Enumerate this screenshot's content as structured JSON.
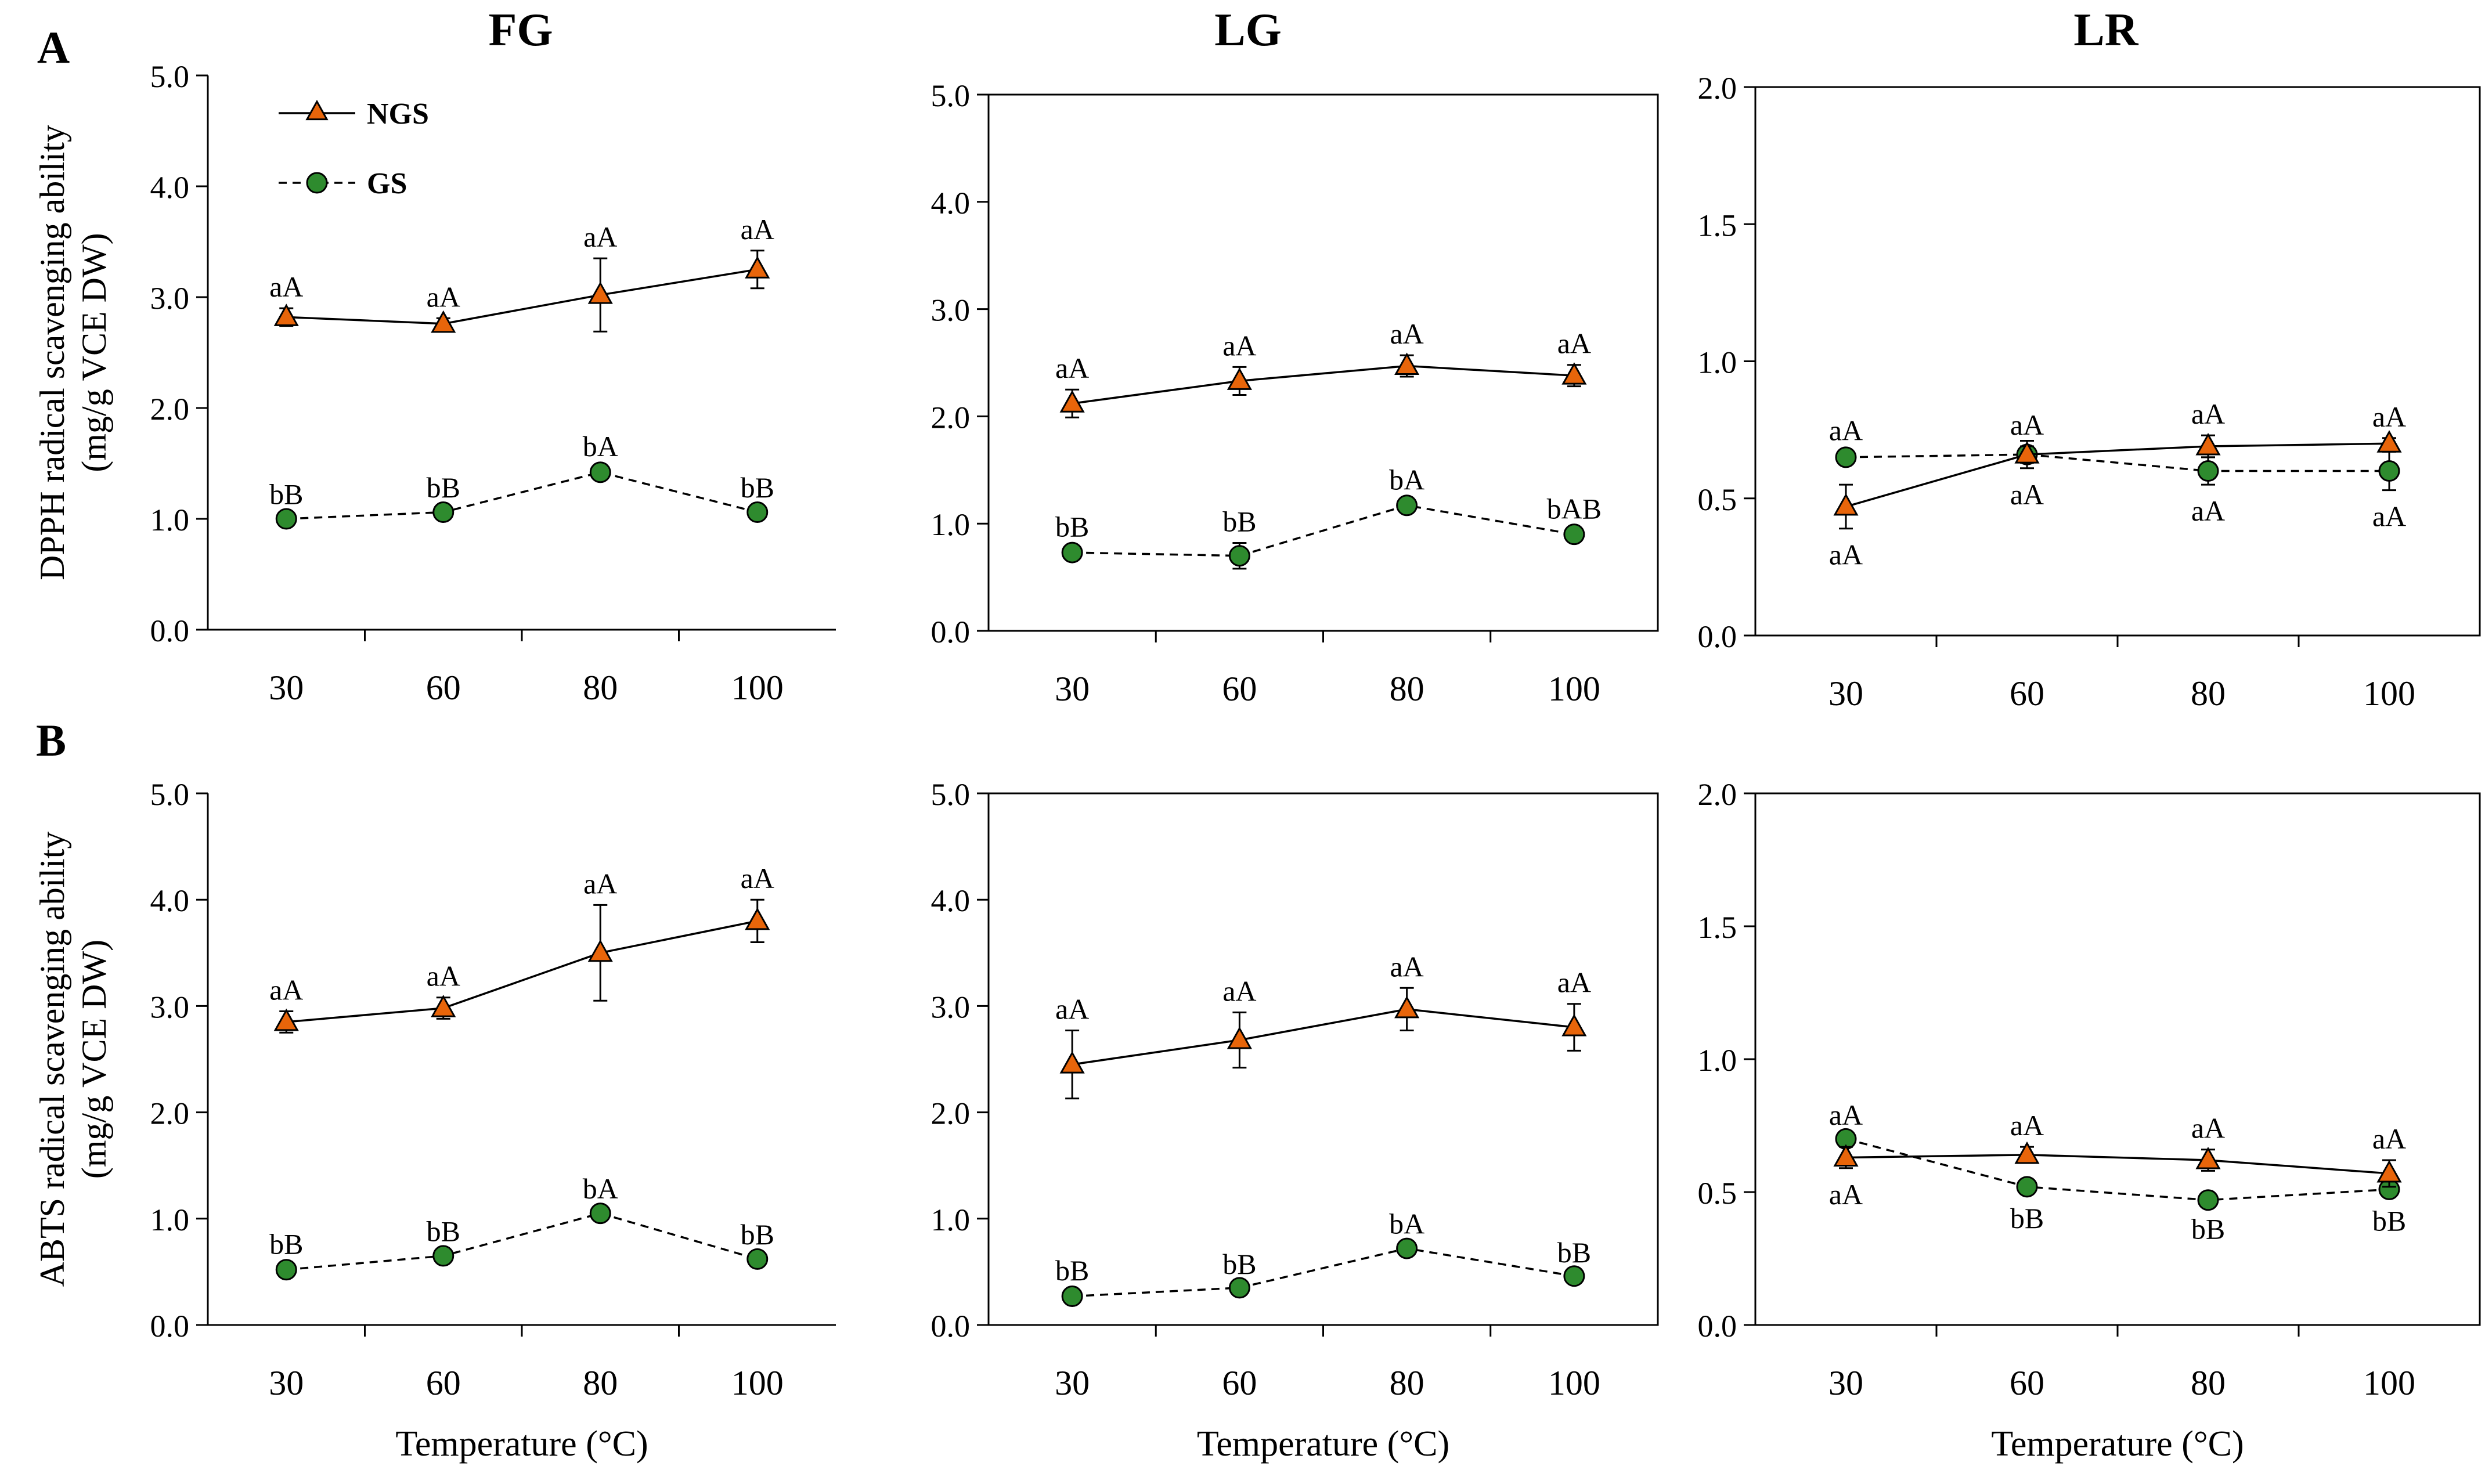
{
  "figure": {
    "row_labels": [
      "A",
      "B"
    ],
    "legend": [
      {
        "name": "NGS",
        "style": "solid",
        "marker": "triangle",
        "color": "#E8650A"
      },
      {
        "name": "GS",
        "style": "dashed",
        "marker": "circle",
        "color": "#2E8B2E"
      }
    ],
    "colors": {
      "ngs": "#E8650A",
      "gs": "#2E8B2E",
      "axis": "#000000"
    }
  },
  "chart_data": [
    {
      "type": "line",
      "row": "A",
      "col": 0,
      "title": "FG",
      "ylabel": [
        "DPPH radical scavenging ability",
        "(mg/g VCE DW)"
      ],
      "xlabel": "",
      "categories": [
        "30",
        "60",
        "80",
        "100"
      ],
      "ylim": [
        0,
        5
      ],
      "yticks": [
        "0.0",
        "1.0",
        "2.0",
        "3.0",
        "4.0",
        "5.0"
      ],
      "ystep": 1,
      "show_legend": true,
      "series": [
        {
          "name": "NGS",
          "values": [
            2.82,
            2.76,
            3.02,
            3.25
          ],
          "errors": [
            0.08,
            0.05,
            0.33,
            0.17
          ],
          "labels": [
            "aA",
            "aA",
            "aA",
            "aA"
          ],
          "label_pos": [
            "above",
            "above",
            "above",
            "above"
          ]
        },
        {
          "name": "GS",
          "values": [
            1.0,
            1.06,
            1.42,
            1.06
          ],
          "errors": [
            0.03,
            0.03,
            0.04,
            0.03
          ],
          "labels": [
            "bB",
            "bB",
            "bA",
            "bB"
          ],
          "label_pos": [
            "above",
            "above",
            "above",
            "above"
          ]
        }
      ]
    },
    {
      "type": "line",
      "row": "A",
      "col": 1,
      "title": "LG",
      "ylabel": [],
      "xlabel": "",
      "categories": [
        "30",
        "60",
        "80",
        "100"
      ],
      "ylim": [
        0,
        5
      ],
      "yticks": [
        "0.0",
        "1.0",
        "2.0",
        "3.0",
        "4.0",
        "5.0"
      ],
      "ystep": 1,
      "show_legend": false,
      "series": [
        {
          "name": "NGS",
          "values": [
            2.12,
            2.33,
            2.47,
            2.38
          ],
          "errors": [
            0.13,
            0.13,
            0.1,
            0.1
          ],
          "labels": [
            "aA",
            "aA",
            "aA",
            "aA"
          ],
          "label_pos": [
            "above",
            "above",
            "above",
            "above"
          ]
        },
        {
          "name": "GS",
          "values": [
            0.73,
            0.7,
            1.17,
            0.9
          ],
          "errors": [
            0.04,
            0.12,
            0.04,
            0.04
          ],
          "labels": [
            "bB",
            "bB",
            "bA",
            "bAB"
          ],
          "label_pos": [
            "above",
            "above",
            "above",
            "above"
          ]
        }
      ]
    },
    {
      "type": "line",
      "row": "A",
      "col": 2,
      "title": "LR",
      "ylabel": [],
      "xlabel": "",
      "categories": [
        "30",
        "60",
        "80",
        "100"
      ],
      "ylim": [
        0,
        2
      ],
      "yticks": [
        "0.0",
        "0.5",
        "1.0",
        "1.5",
        "2.0"
      ],
      "ystep": 0.5,
      "show_legend": false,
      "series": [
        {
          "name": "NGS",
          "values": [
            0.47,
            0.66,
            0.69,
            0.7
          ],
          "errors": [
            0.08,
            0.03,
            0.04,
            0.02
          ],
          "labels": [
            "aA",
            "aA",
            "aA",
            "aA"
          ],
          "label_pos": [
            "below",
            "above",
            "above",
            "above"
          ]
        },
        {
          "name": "GS",
          "values": [
            0.65,
            0.66,
            0.6,
            0.6
          ],
          "errors": [
            0.02,
            0.05,
            0.05,
            0.07
          ],
          "labels": [
            "aA",
            "aA",
            "aA",
            "aA"
          ],
          "label_pos": [
            "above",
            "below",
            "below",
            "below"
          ]
        }
      ]
    },
    {
      "type": "line",
      "row": "B",
      "col": 0,
      "title": "",
      "ylabel": [
        "ABTS radical scavenging ability",
        "(mg/g VCE DW)"
      ],
      "xlabel": "Temperature (°C)",
      "categories": [
        "30",
        "60",
        "80",
        "100"
      ],
      "ylim": [
        0,
        5
      ],
      "yticks": [
        "0.0",
        "1.0",
        "2.0",
        "3.0",
        "4.0",
        "5.0"
      ],
      "ystep": 1,
      "show_legend": false,
      "series": [
        {
          "name": "NGS",
          "values": [
            2.85,
            2.98,
            3.5,
            3.8
          ],
          "errors": [
            0.1,
            0.1,
            0.45,
            0.2
          ],
          "labels": [
            "aA",
            "aA",
            "aA",
            "aA"
          ],
          "label_pos": [
            "above",
            "above",
            "above",
            "above"
          ]
        },
        {
          "name": "GS",
          "values": [
            0.52,
            0.65,
            1.05,
            0.62
          ],
          "errors": [
            0.04,
            0.03,
            0.03,
            0.03
          ],
          "labels": [
            "bB",
            "bB",
            "bA",
            "bB"
          ],
          "label_pos": [
            "above",
            "above",
            "above",
            "above"
          ]
        }
      ]
    },
    {
      "type": "line",
      "row": "B",
      "col": 1,
      "title": "",
      "ylabel": [],
      "xlabel": "Temperature (°C)",
      "categories": [
        "30",
        "60",
        "80",
        "100"
      ],
      "ylim": [
        0,
        5
      ],
      "yticks": [
        "0.0",
        "1.0",
        "2.0",
        "3.0",
        "4.0",
        "5.0"
      ],
      "ystep": 1,
      "show_legend": false,
      "series": [
        {
          "name": "NGS",
          "values": [
            2.45,
            2.68,
            2.97,
            2.8
          ],
          "errors": [
            0.32,
            0.26,
            0.2,
            0.22
          ],
          "labels": [
            "aA",
            "aA",
            "aA",
            "aA"
          ],
          "label_pos": [
            "above",
            "above",
            "above",
            "above"
          ]
        },
        {
          "name": "GS",
          "values": [
            0.27,
            0.35,
            0.72,
            0.46
          ],
          "errors": [
            0.04,
            0.02,
            0.03,
            0.02
          ],
          "labels": [
            "bB",
            "bB",
            "bA",
            "bB"
          ],
          "label_pos": [
            "above",
            "above",
            "above",
            "above"
          ]
        }
      ]
    },
    {
      "type": "line",
      "row": "B",
      "col": 2,
      "title": "",
      "ylabel": [],
      "xlabel": "Temperature (°C)",
      "categories": [
        "30",
        "60",
        "80",
        "100"
      ],
      "ylim": [
        0,
        2
      ],
      "yticks": [
        "0.0",
        "0.5",
        "1.0",
        "1.5",
        "2.0"
      ],
      "ystep": 0.5,
      "show_legend": false,
      "series": [
        {
          "name": "NGS",
          "values": [
            0.63,
            0.64,
            0.62,
            0.57
          ],
          "errors": [
            0.04,
            0.03,
            0.04,
            0.05
          ],
          "labels": [
            "aA",
            "aA",
            "aA",
            "aA"
          ],
          "label_pos": [
            "below",
            "above",
            "above",
            "above"
          ]
        },
        {
          "name": "GS",
          "values": [
            0.7,
            0.52,
            0.47,
            0.51
          ],
          "errors": [
            0.01,
            0.02,
            0.01,
            0.02
          ],
          "labels": [
            "aA",
            "bB",
            "bB",
            "bB"
          ],
          "label_pos": [
            "above",
            "below",
            "below",
            "below"
          ]
        }
      ]
    }
  ]
}
